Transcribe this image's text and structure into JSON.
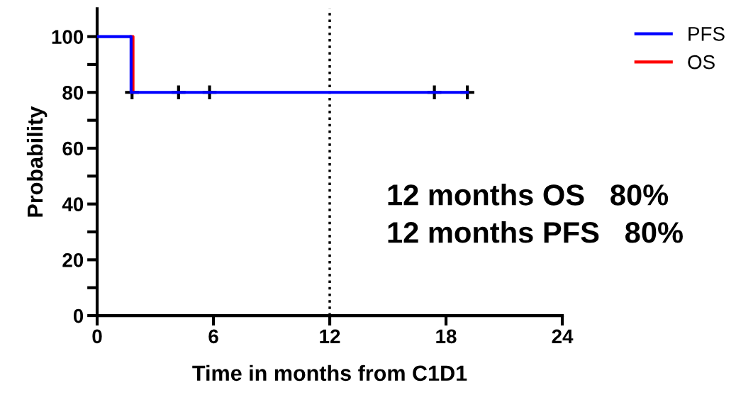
{
  "chart_data": {
    "type": "step",
    "xlabel": "Time in months from C1D1",
    "ylabel": "Probability",
    "series": [
      {
        "name": "OS",
        "color": "#ff0000",
        "x": [
          1.75,
          1.85
        ],
        "values": [
          100,
          80
        ]
      },
      {
        "name": "PFS",
        "color": "#0000ff",
        "x": [
          0,
          1.75,
          19.1
        ],
        "values": [
          100,
          80,
          80
        ]
      },
      {
        "type": "scatter",
        "color": "#000000",
        "marker": "cross",
        "x": [
          1.8,
          4.2,
          5.8,
          17.4,
          19.1
        ],
        "values": [
          80,
          80,
          80,
          80,
          80
        ]
      }
    ],
    "xlim": [
      0,
      24
    ],
    "xticks": [
      0,
      6,
      12,
      18,
      24
    ],
    "ylim": [
      0,
      110
    ],
    "yticks": [
      0,
      {
        "value": 10,
        "label": null
      },
      20,
      {
        "value": 30,
        "label": null
      },
      40,
      {
        "value": 50,
        "label": null
      },
      60,
      {
        "value": 70,
        "label": null
      },
      80,
      {
        "value": 90,
        "label": null
      },
      100
    ],
    "ref_lines": [
      {
        "axis": "x",
        "value": 12,
        "color": "#000000",
        "line_style": "dotted"
      }
    ],
    "annotations": [
      "12 months OS   80%",
      "12 months PFS   80%"
    ],
    "legend": "top right",
    "grid": false
  }
}
